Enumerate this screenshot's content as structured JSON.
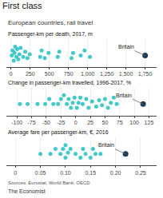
{
  "title": "First class",
  "subtitle": "European countries, rail travel",
  "annotations": [
    {
      "text": "Sources: Eurostat; World Bank; OECD"
    },
    {
      "text": "The Economist"
    }
  ],
  "chart_data": [
    {
      "type": "scatter",
      "title": "Passenger-km per death, 2017, m",
      "xlim": [
        -60,
        1900
      ],
      "xticks": [
        0,
        250,
        500,
        750,
        {
          "value": 1000,
          "label": "1,000"
        },
        {
          "value": 1250,
          "label": "1,250"
        },
        {
          "value": 1500,
          "label": "1,500"
        },
        {
          "value": 1750,
          "label": "1,750"
        }
      ],
      "ylim": [
        0,
        2.2
      ],
      "tick_labels": "x",
      "grid": true,
      "series": [
        {
          "color": "#44c8c8",
          "x": [
            10,
            20,
            35,
            45,
            55,
            70,
            80,
            95,
            110,
            125,
            160,
            185,
            215,
            245,
            380,
            400,
            440,
            490,
            610,
            630,
            790,
            810,
            910,
            960,
            1030
          ],
          "values": [
            0.9,
            1.3,
            0.5,
            1.1,
            1.6,
            0.8,
            1.4,
            0.6,
            1.0,
            1.5,
            0.8,
            1.2,
            0.7,
            1.0,
            0.8,
            1.3,
            0.7,
            1.1,
            0.8,
            1.2,
            0.7,
            1.1,
            0.9,
            1.3,
            0.8
          ]
        },
        {
          "color": "#1c3d5a",
          "x": [
            1750
          ],
          "values": [
            0.9
          ]
        }
      ],
      "annotations": [
        {
          "text": "Britain",
          "x": 1750,
          "y": 0.9
        }
      ]
    },
    {
      "type": "scatter",
      "title": "Change in passenger-km travelled, 1996-2017, %",
      "xlim": [
        -118,
        138
      ],
      "xticks": [
        -100,
        -75,
        -50,
        -25,
        0,
        25,
        50,
        75,
        100,
        125
      ],
      "ylim": [
        0,
        2.2
      ],
      "tick_labels": "x",
      "grid": true,
      "series": [
        {
          "color": "#44c8c8",
          "x": [
            -95,
            -82,
            -65,
            -52,
            -45,
            -38,
            -30,
            -25,
            -20,
            -15,
            -12,
            -8,
            -5,
            -2,
            2,
            5,
            8,
            12,
            18,
            22,
            28,
            35,
            40,
            45,
            50,
            55,
            60,
            65,
            70
          ],
          "values": [
            0.9,
            0.9,
            0.9,
            0.9,
            1.3,
            0.9,
            0.9,
            1.3,
            1.6,
            0.9,
            1.3,
            0.6,
            1.0,
            1.4,
            0.6,
            1.0,
            1.4,
            0.9,
            1.3,
            0.6,
            1.1,
            0.7,
            1.2,
            0.8,
            1.3,
            0.6,
            1.0,
            1.4,
            0.9
          ]
        },
        {
          "color": "#1c3d5a",
          "x": [
            115
          ],
          "values": [
            0.9
          ]
        }
      ],
      "annotations": [
        {
          "text": "Britain",
          "x": 115,
          "y": 0.9
        }
      ]
    },
    {
      "type": "scatter",
      "title": "Average fare per passenger-km, €, 2016",
      "xlim": [
        -0.018,
        0.282
      ],
      "xticks": [
        0,
        0.05,
        {
          "value": 0.1,
          "label": "0.10"
        },
        0.15,
        {
          "value": 0.2,
          "label": "0.20"
        },
        0.25
      ],
      "ylim": [
        0,
        2.2
      ],
      "tick_labels": "x",
      "grid": true,
      "series": [
        {
          "color": "#44c8c8",
          "x": [
            0.05,
            0.07,
            0.08,
            0.09,
            0.095,
            0.1,
            0.1,
            0.105,
            0.11,
            0.12,
            0.13,
            0.135,
            0.14,
            0.15,
            0.155,
            0.16,
            0.17
          ],
          "values": [
            0.9,
            0.9,
            1.3,
            0.9,
            1.3,
            0.6,
            1.6,
            1.0,
            1.3,
            0.9,
            0.6,
            1.3,
            0.9,
            0.6,
            1.3,
            0.9,
            0.9
          ]
        },
        {
          "color": "#1c3d5a",
          "x": [
            0.22
          ],
          "values": [
            0.9
          ]
        }
      ],
      "annotations": [
        {
          "text": "Britain",
          "x": 0.22,
          "y": 0.9
        }
      ]
    }
  ]
}
